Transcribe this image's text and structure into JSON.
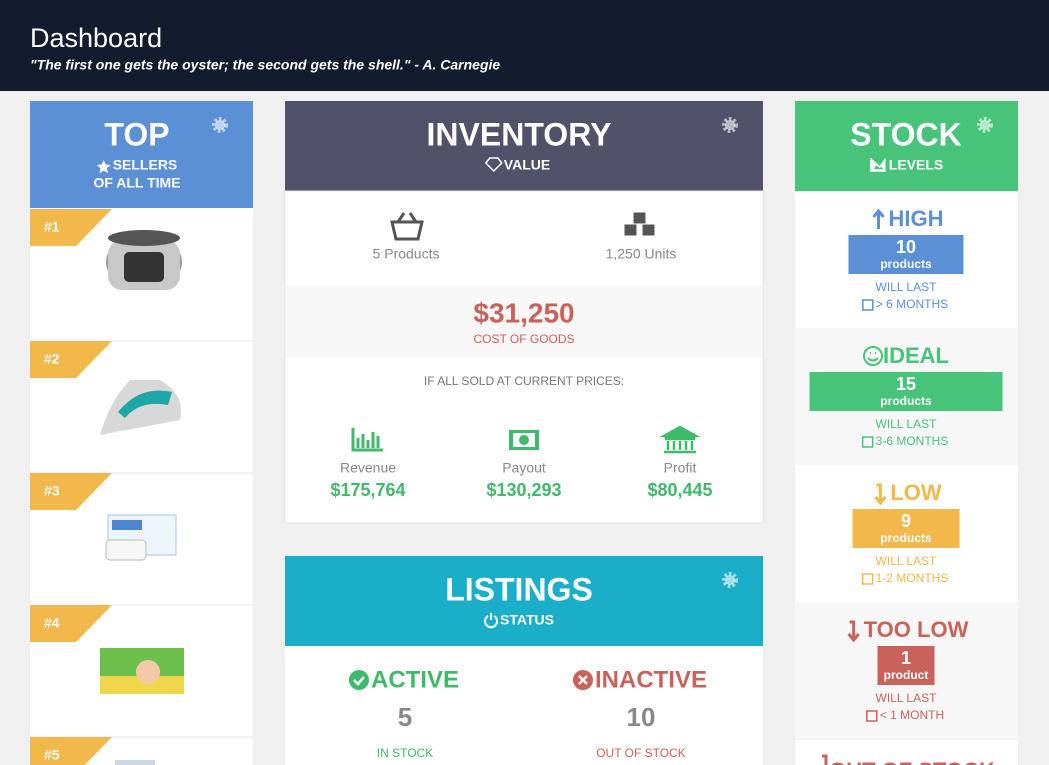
{
  "header": {
    "title": "Dashboard",
    "quote": "\"The first one gets the oyster; the second gets the shell.\" - A. Carnegie"
  },
  "top_sellers": {
    "title": "TOP",
    "subtitle_line1": "SELLERS",
    "subtitle_line2": "OF ALL TIME",
    "items": [
      {
        "rank": "#1"
      },
      {
        "rank": "#2"
      },
      {
        "rank": "#3"
      },
      {
        "rank": "#4"
      },
      {
        "rank": "#5"
      }
    ]
  },
  "inventory": {
    "title": "INVENTORY",
    "subtitle": "VALUE",
    "products": "5 Products",
    "units": "1,250 Units",
    "cost": "$31,250",
    "cost_label": "COST OF GOODS",
    "note": "IF ALL SOLD AT CURRENT PRICES:",
    "metrics": [
      {
        "label": "Revenue",
        "value": "$175,764"
      },
      {
        "label": "Payout",
        "value": "$130,293"
      },
      {
        "label": "Profit",
        "value": "$80,445"
      }
    ]
  },
  "listings": {
    "title": "LISTINGS",
    "subtitle": "STATUS",
    "active": {
      "label": "ACTIVE",
      "count": "5",
      "caption": "IN STOCK"
    },
    "inactive": {
      "label": "INACTIVE",
      "count": "10",
      "caption": "OUT OF STOCK"
    }
  },
  "stock": {
    "title": "STOCK",
    "subtitle": "LEVELS",
    "levels": [
      {
        "label": "HIGH",
        "count": "10",
        "unit": "products",
        "will_last": "WILL LAST",
        "duration": "> 6 MONTHS",
        "color": "#5b8fd6"
      },
      {
        "label": "IDEAL",
        "count": "15",
        "unit": "products",
        "will_last": "WILL LAST",
        "duration": "3-6 MONTHS",
        "color": "#47c479"
      },
      {
        "label": "LOW",
        "count": "9",
        "unit": "products",
        "will_last": "WILL LAST",
        "duration": "1-2 MONTHS",
        "color": "#f2b84b"
      },
      {
        "label": "TOO LOW",
        "count": "1",
        "unit": "product",
        "will_last": "WILL LAST",
        "duration": "< 1 MONTH",
        "color": "#c9625a"
      }
    ],
    "out_of_stock": "OUT OF STOCK"
  }
}
